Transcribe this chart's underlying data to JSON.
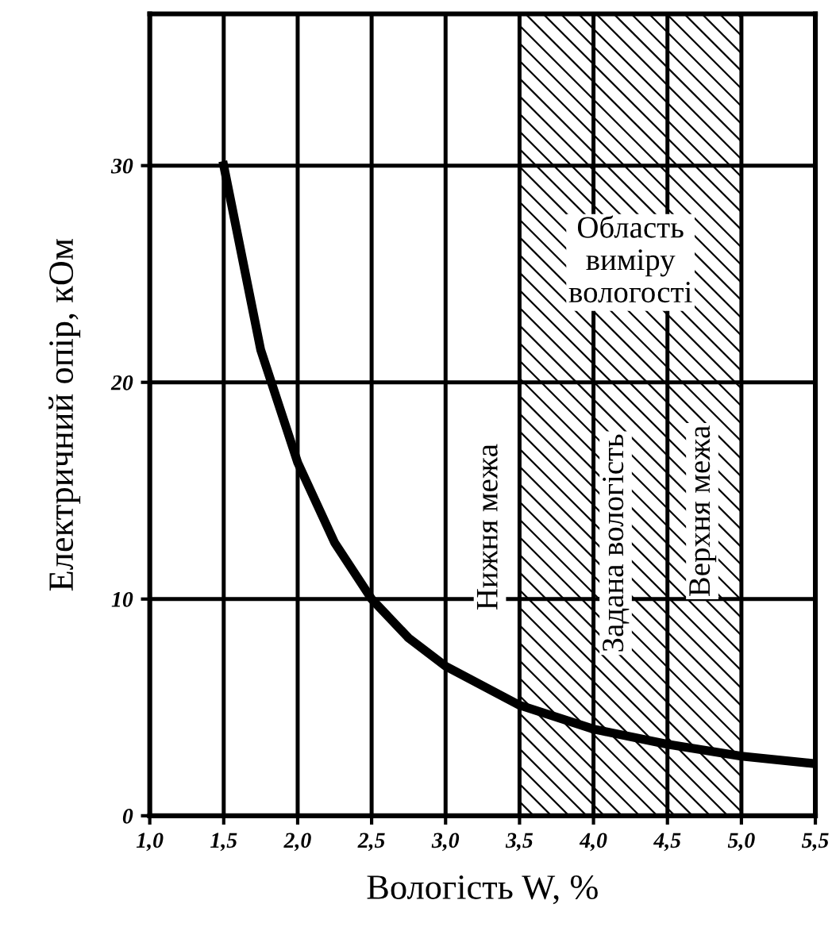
{
  "chart_data": {
    "type": "line",
    "xlabel": "Вологість W, %",
    "ylabel": "Електричний опір, кОм",
    "x": [
      1.5,
      1.75,
      2.0,
      2.25,
      2.5,
      2.75,
      3.0,
      3.5,
      4.0,
      4.5,
      5.0,
      5.5
    ],
    "series": [
      {
        "color": "#000000",
        "values": [
          30,
          21.5,
          16.3,
          12.6,
          10,
          8.2,
          6.9,
          5.1,
          4.0,
          3.3,
          2.75,
          2.4
        ]
      }
    ],
    "xlim": [
      1.0,
      5.5
    ],
    "ylim": [
      0,
      37
    ],
    "xticks": [
      {
        "value": 1.0,
        "label": "1,0"
      },
      {
        "value": 1.5,
        "label": "1,5"
      },
      {
        "value": 2.0,
        "label": "2,0"
      },
      {
        "value": 2.5,
        "label": "2,5"
      },
      {
        "value": 3.0,
        "label": "3,0"
      },
      {
        "value": 3.5,
        "label": "3,5"
      },
      {
        "value": 4.0,
        "label": "4,0"
      },
      {
        "value": 4.5,
        "label": "4,5"
      },
      {
        "value": 5.0,
        "label": "5,0"
      },
      {
        "value": 5.5,
        "label": "5,5"
      }
    ],
    "yticks": [
      0,
      10,
      20,
      30
    ],
    "grid": true,
    "marker": "none",
    "line_style": "solid",
    "bands": [
      {
        "axis": "x",
        "from": 3.5,
        "to": 5.0,
        "label": "Область\nвиміру\nвологості"
      }
    ],
    "annotations": [
      "Нижня межа",
      "Задана вологість",
      "Верхня межа"
    ]
  }
}
